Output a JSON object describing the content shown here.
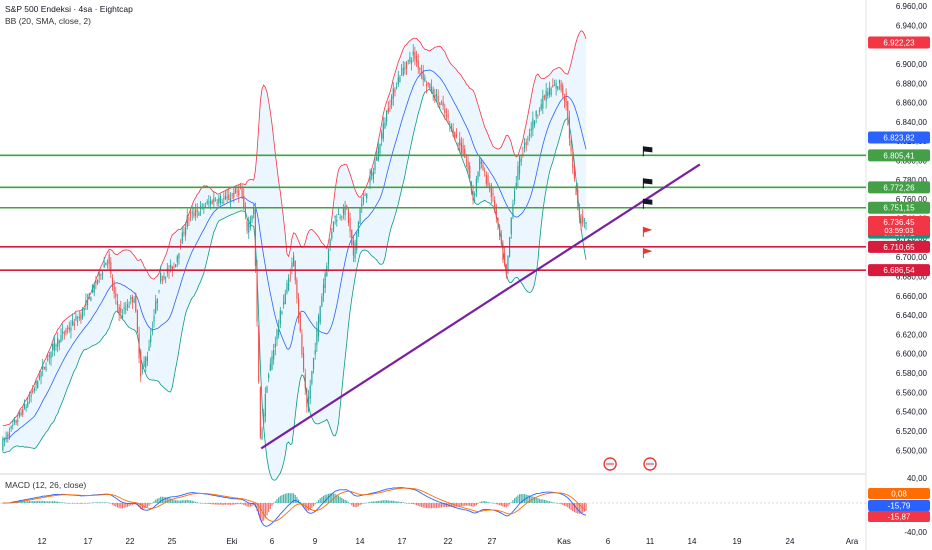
{
  "header": {
    "title": "S&P 500 Endeksi · 4sa · Eightcap",
    "indicator": "BB (20, SMA, close, 2)",
    "macd_label": "MACD (12, 26, close)"
  },
  "colors": {
    "up": "#26a69a",
    "down": "#ef5350",
    "bb_upper": "#f23645",
    "bb_lower": "#089981",
    "bb_basis": "#2962ff",
    "bb_fill": "#e3f2fd",
    "support": "#43a047",
    "resistance": "#d81b3d",
    "trendline": "#7b1fa2",
    "macd_line": "#2962ff",
    "signal_line": "#ff6d00"
  },
  "chart_data": {
    "type": "candlestick",
    "symbol": "S&P 500 Endeksi",
    "timeframe": "4sa",
    "ylim": [
      6490,
      6960
    ],
    "y_ticks": [
      "6.960,00",
      "6.940,00",
      "6.920,00",
      "6.900,00",
      "6.880,00",
      "6.860,00",
      "6.840,00",
      "6.820,00",
      "6.800,00",
      "6.780,00",
      "6.760,00",
      "6.740,00",
      "6.720,00",
      "6.700,00",
      "6.680,00",
      "6.660,00",
      "6.640,00",
      "6.620,00",
      "6.600,00",
      "6.580,00",
      "6.560,00",
      "6.540,00",
      "6.520,00",
      "6.500,00"
    ],
    "x_ticks": [
      "12",
      "17",
      "22",
      "25",
      "Eki",
      "6",
      "9",
      "14",
      "17",
      "22",
      "27",
      "Kas",
      "6",
      "11",
      "14",
      "19",
      "24",
      "Ara"
    ],
    "price_path": [
      [
        0,
        6505
      ],
      [
        4,
        6550
      ],
      [
        8,
        6610
      ],
      [
        12,
        6640
      ],
      [
        16,
        6700
      ],
      [
        17,
        6660
      ],
      [
        18,
        6640
      ],
      [
        20,
        6660
      ],
      [
        21,
        6580
      ],
      [
        22,
        6600
      ],
      [
        24,
        6680
      ],
      [
        26,
        6690
      ],
      [
        28,
        6740
      ],
      [
        30,
        6750
      ],
      [
        32,
        6760
      ],
      [
        34,
        6760
      ],
      [
        36,
        6770
      ],
      [
        37,
        6730
      ],
      [
        38,
        6750
      ],
      [
        39,
        6510
      ],
      [
        40,
        6570
      ],
      [
        42,
        6640
      ],
      [
        44,
        6700
      ],
      [
        45,
        6620
      ],
      [
        46,
        6540
      ],
      [
        48,
        6650
      ],
      [
        50,
        6740
      ],
      [
        52,
        6750
      ],
      [
        53,
        6700
      ],
      [
        54,
        6750
      ],
      [
        56,
        6790
      ],
      [
        58,
        6850
      ],
      [
        60,
        6890
      ],
      [
        62,
        6910
      ],
      [
        64,
        6880
      ],
      [
        66,
        6860
      ],
      [
        68,
        6830
      ],
      [
        70,
        6800
      ],
      [
        71,
        6760
      ],
      [
        72,
        6800
      ],
      [
        74,
        6760
      ],
      [
        75,
        6720
      ],
      [
        76,
        6680
      ],
      [
        77,
        6760
      ],
      [
        78,
        6800
      ],
      [
        80,
        6840
      ],
      [
        82,
        6870
      ],
      [
        84,
        6880
      ],
      [
        85,
        6860
      ],
      [
        86,
        6790
      ],
      [
        87,
        6740
      ],
      [
        88,
        6736
      ]
    ],
    "last_price": 6736.45,
    "countdown": "03:59:03",
    "price_labels": [
      {
        "value": 6922.23,
        "label": "6.922,23",
        "color": "#f23645"
      },
      {
        "value": 6823.82,
        "label": "6.823,82",
        "color": "#2962ff"
      },
      {
        "value": 6805.41,
        "label": "6.805,41",
        "color": "#43a047"
      },
      {
        "value": 6772.26,
        "label": "6.772,26",
        "color": "#43a047"
      },
      {
        "value": 6751.15,
        "label": "6.751,15",
        "color": "#43a047"
      },
      {
        "value": 6736.45,
        "label": "6.736,45",
        "color": "#f23645"
      },
      {
        "value": 6725.41,
        "label": "6.725,41",
        "color": "#089981"
      },
      {
        "value": 6710.65,
        "label": "6.710,65",
        "color": "#d81b3d"
      },
      {
        "value": 6686.54,
        "label": "6.686,54",
        "color": "#d81b3d"
      }
    ],
    "horizontal_lines": [
      {
        "value": 6805.41,
        "kind": "support"
      },
      {
        "value": 6772.26,
        "kind": "support"
      },
      {
        "value": 6751.15,
        "kind": "support"
      },
      {
        "value": 6710.65,
        "kind": "resistance"
      },
      {
        "value": 6686.54,
        "kind": "resistance"
      }
    ],
    "trendline": {
      "from": [
        39,
        6502
      ],
      "to": [
        105,
        6796
      ]
    },
    "macd": {
      "ylim": [
        -40,
        40
      ],
      "ticks": [
        "40,00",
        "-40,00"
      ],
      "values": [
        {
          "value": 0.08,
          "label": "0,08",
          "color": "#ff6d00"
        },
        {
          "value": -15.79,
          "label": "-15,79",
          "color": "#2962ff"
        },
        {
          "value": -15.87,
          "label": "-15,87",
          "color": "#f23645"
        }
      ]
    }
  }
}
